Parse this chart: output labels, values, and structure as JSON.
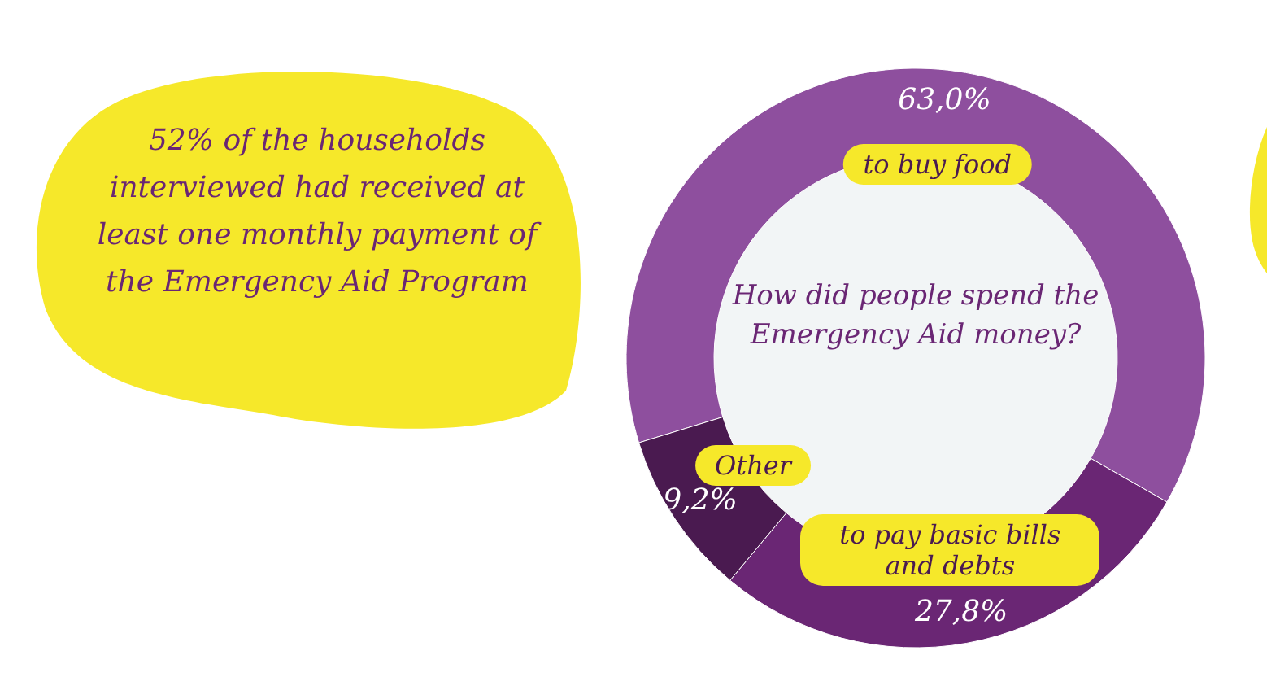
{
  "chart_data": {
    "type": "donut",
    "title": "How did people spend the Emergency Aid money?",
    "categories": [
      "to buy food",
      "to pay basic bills and debts",
      "Other"
    ],
    "values": [
      63.0,
      27.8,
      9.2
    ],
    "colors": [
      "#8e4f9e",
      "#6a2674",
      "#4a1a50"
    ],
    "value_labels": [
      "63,0%",
      "27,8%",
      "9,2%"
    ],
    "annotations": [
      "52% of the households interviewed had received at least one monthly payment of the Emergency Aid Program"
    ]
  }
}
